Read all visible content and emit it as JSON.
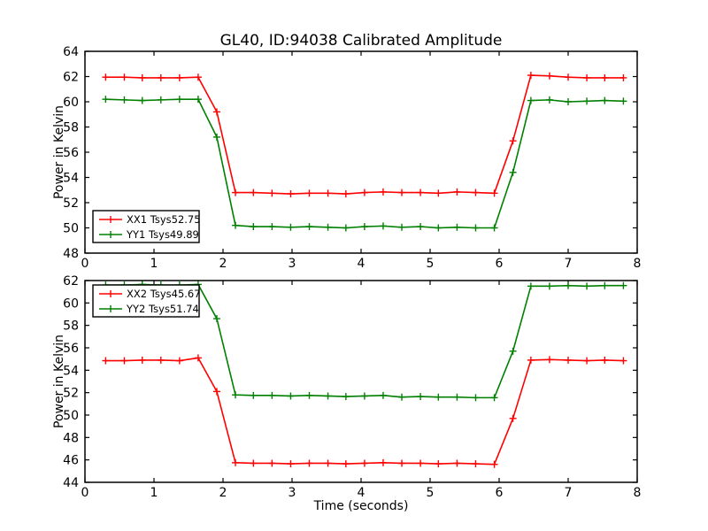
{
  "figure": {
    "background": "#ffffff",
    "series_colors": {
      "red": "#ff0000",
      "green": "#008000"
    }
  },
  "chart_data": [
    {
      "type": "line",
      "title": "GL40, ID:94038 Calibrated Amplitude",
      "xlabel": "",
      "ylabel": "Power in Kelvin",
      "xlim": [
        0,
        8
      ],
      "ylim": [
        48,
        64
      ],
      "xticks": [
        0,
        1,
        2,
        3,
        4,
        5,
        6,
        7,
        8
      ],
      "yticks": [
        48,
        50,
        52,
        54,
        56,
        58,
        60,
        62,
        64
      ],
      "grid": false,
      "legend_position": "lower left",
      "x": [
        0.3,
        0.57,
        0.83,
        1.1,
        1.37,
        1.64,
        1.91,
        2.18,
        2.44,
        2.71,
        2.98,
        3.25,
        3.52,
        3.78,
        4.05,
        4.32,
        4.59,
        4.86,
        5.12,
        5.39,
        5.66,
        5.93,
        6.2,
        6.46,
        6.73,
        7.0,
        7.27,
        7.53,
        7.8
      ],
      "series": [
        {
          "name": "XX1 Tsys52.75",
          "color": "#ff0000",
          "marker": "+",
          "y": [
            61.95,
            61.95,
            61.9,
            61.9,
            61.9,
            61.95,
            59.2,
            52.8,
            52.8,
            52.75,
            52.7,
            52.75,
            52.75,
            52.7,
            52.8,
            52.85,
            52.8,
            52.8,
            52.75,
            52.85,
            52.8,
            52.75,
            56.9,
            62.1,
            62.05,
            61.95,
            61.9,
            61.9,
            61.9
          ]
        },
        {
          "name": "YY1 Tsys49.89",
          "color": "#008000",
          "marker": "+",
          "y": [
            60.2,
            60.15,
            60.1,
            60.15,
            60.2,
            60.2,
            57.2,
            50.2,
            50.1,
            50.1,
            50.05,
            50.1,
            50.05,
            50.0,
            50.1,
            50.15,
            50.05,
            50.1,
            50.0,
            50.05,
            50.0,
            50.0,
            54.4,
            60.1,
            60.15,
            60.0,
            60.05,
            60.1,
            60.05
          ]
        }
      ]
    },
    {
      "type": "line",
      "title": "",
      "xlabel": "Time (seconds)",
      "ylabel": "Power in Kelvin",
      "xlim": [
        0,
        8
      ],
      "ylim": [
        44,
        62
      ],
      "xticks": [
        0,
        1,
        2,
        3,
        4,
        5,
        6,
        7,
        8
      ],
      "yticks": [
        44,
        46,
        48,
        50,
        52,
        54,
        56,
        58,
        60,
        62
      ],
      "grid": false,
      "legend_position": "upper left",
      "x": [
        0.3,
        0.57,
        0.83,
        1.1,
        1.37,
        1.64,
        1.91,
        2.18,
        2.44,
        2.71,
        2.98,
        3.25,
        3.52,
        3.78,
        4.05,
        4.32,
        4.59,
        4.86,
        5.12,
        5.39,
        5.66,
        5.93,
        6.2,
        6.46,
        6.73,
        7.0,
        7.27,
        7.53,
        7.8
      ],
      "series": [
        {
          "name": "XX2 Tsys45.67",
          "color": "#ff0000",
          "marker": "+",
          "y": [
            54.85,
            54.85,
            54.9,
            54.9,
            54.85,
            55.1,
            52.1,
            45.75,
            45.7,
            45.7,
            45.65,
            45.7,
            45.7,
            45.65,
            45.7,
            45.75,
            45.7,
            45.7,
            45.65,
            45.7,
            45.65,
            45.6,
            49.7,
            54.9,
            54.95,
            54.9,
            54.85,
            54.9,
            54.85
          ]
        },
        {
          "name": "YY2 Tsys51.74",
          "color": "#008000",
          "marker": "+",
          "y": [
            61.6,
            61.6,
            61.65,
            61.6,
            61.6,
            61.65,
            58.6,
            51.8,
            51.75,
            51.75,
            51.7,
            51.75,
            51.7,
            51.65,
            51.7,
            51.75,
            51.6,
            51.65,
            51.6,
            51.6,
            51.55,
            51.55,
            55.7,
            61.5,
            61.5,
            61.55,
            61.5,
            61.55,
            61.55
          ]
        }
      ]
    }
  ]
}
